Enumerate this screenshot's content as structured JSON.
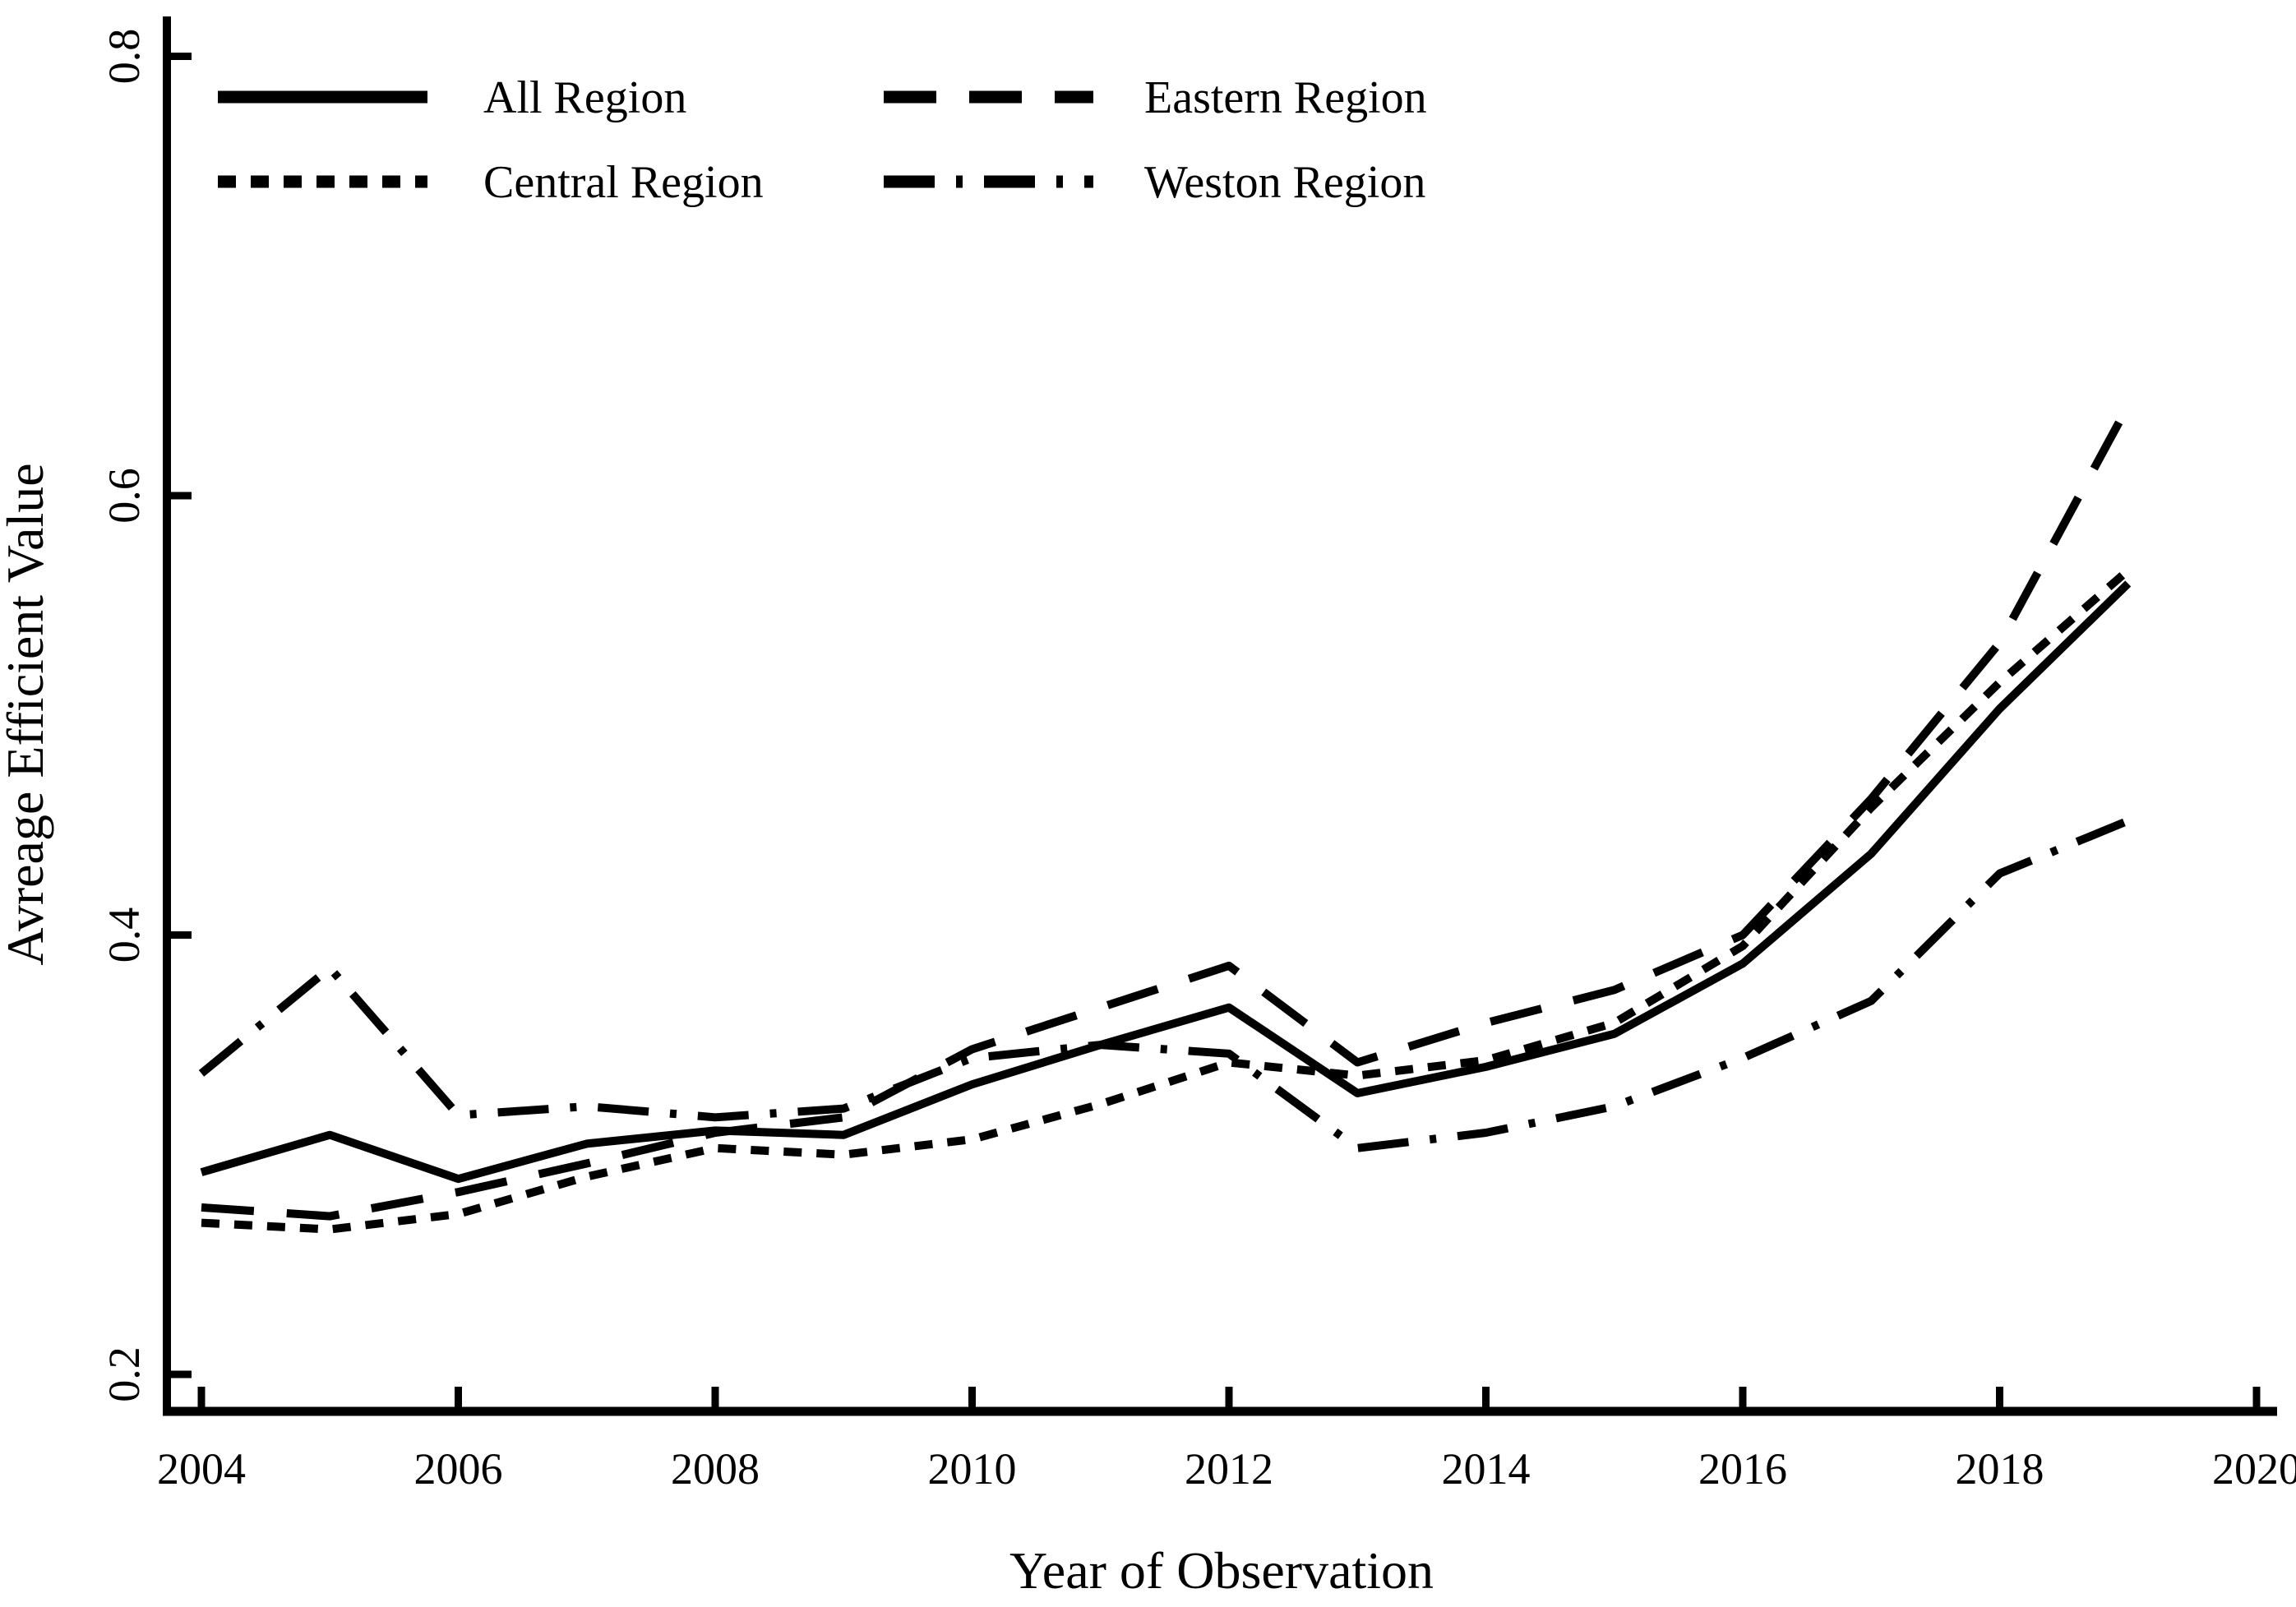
{
  "chart_data": {
    "type": "line",
    "title": "",
    "xlabel": "Year of Observation",
    "ylabel": "Avreage Efficient Value",
    "x": [
      2004,
      2005,
      2006,
      2007,
      2008,
      2009,
      2010,
      2011,
      2012,
      2013,
      2014,
      2015,
      2016,
      2017,
      2018,
      2019
    ],
    "xticks": [
      2004,
      2006,
      2008,
      2010,
      2012,
      2014,
      2016,
      2018,
      2020
    ],
    "yticks": [
      "0.2",
      "0.4",
      "0.6",
      "0.8"
    ],
    "xlim": [
      2003.73,
      2020.16
    ],
    "ylim": [
      0.183,
      0.818
    ],
    "grid": false,
    "legend_position": "top-left-two-columns",
    "line_color": "#000000",
    "background": "#ffffff",
    "series": [
      {
        "name": "All Region",
        "style": "solid",
        "values": [
          0.292,
          0.309,
          0.289,
          0.305,
          0.311,
          0.309,
          0.332,
          0.35,
          0.367,
          0.328,
          0.34,
          0.355,
          0.387,
          0.437,
          0.503,
          0.56
        ]
      },
      {
        "name": "Central Region",
        "style": "dotted",
        "values": [
          0.269,
          0.266,
          0.273,
          0.29,
          0.303,
          0.3,
          0.307,
          0.323,
          0.342,
          0.336,
          0.343,
          0.36,
          0.395,
          0.458,
          0.515,
          0.566
        ]
      },
      {
        "name": "Eastern Region",
        "style": "dashed",
        "values": [
          0.276,
          0.272,
          0.283,
          0.296,
          0.31,
          0.317,
          0.348,
          0.367,
          0.386,
          0.342,
          0.36,
          0.375,
          0.4,
          0.462,
          0.533,
          0.641
        ]
      },
      {
        "name": "Weston Region",
        "style": "dash-dot",
        "values": [
          0.337,
          0.385,
          0.318,
          0.322,
          0.317,
          0.321,
          0.344,
          0.35,
          0.346,
          0.303,
          0.31,
          0.322,
          0.344,
          0.37,
          0.428,
          0.452
        ]
      }
    ]
  }
}
